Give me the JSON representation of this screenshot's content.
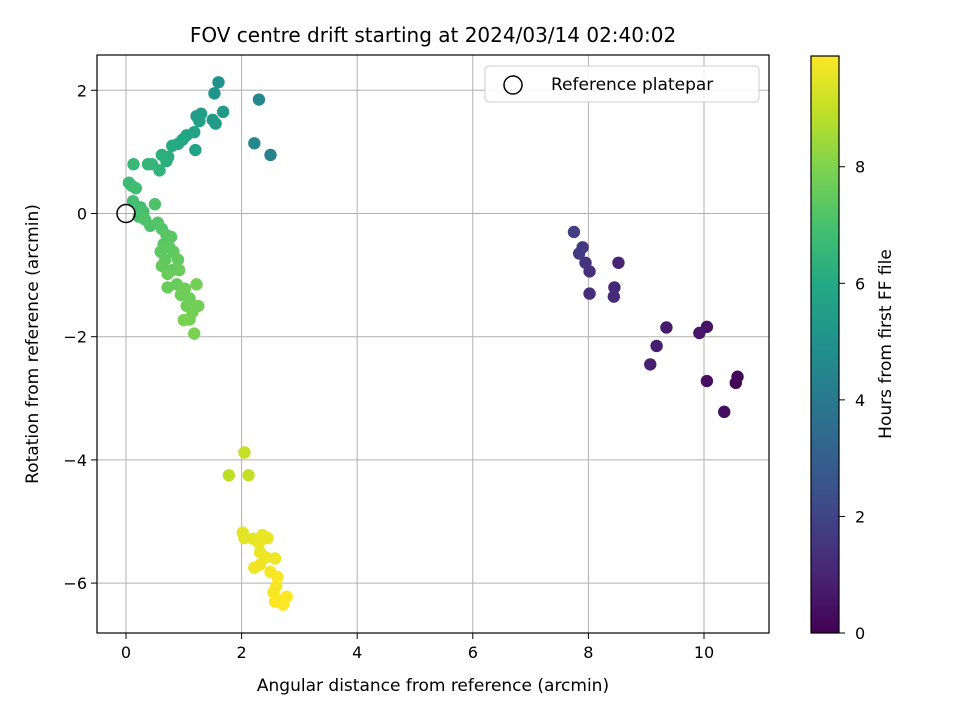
{
  "chart_data": {
    "type": "scatter",
    "title": "FOV centre drift starting at 2024/03/14 02:40:02",
    "xlabel": "Angular distance from reference (arcmin)",
    "ylabel": "Rotation from reference (arcmin)",
    "xlim": [
      -0.5,
      11.1
    ],
    "ylim": [
      -6.8,
      2.55
    ],
    "xticks": [
      0,
      2,
      4,
      6,
      8,
      10
    ],
    "yticks": [
      2,
      0,
      -2,
      -4,
      -6
    ],
    "grid": true,
    "legend": {
      "position": "top-right",
      "entries": [
        "Reference platepar"
      ]
    },
    "reference_point": {
      "x": 0,
      "y": 0,
      "marker": "open-circle"
    },
    "colorbar": {
      "label": "Hours from first FF file",
      "colormap": "viridis",
      "range": [
        0,
        9.9
      ],
      "ticks": [
        0,
        2,
        4,
        6,
        8
      ]
    },
    "series": [
      {
        "color_by": "hours",
        "points": [
          {
            "x": 10.55,
            "y": -2.75,
            "hours": 0.1
          },
          {
            "x": 10.58,
            "y": -2.65,
            "hours": 0.2
          },
          {
            "x": 10.35,
            "y": -3.22,
            "hours": 0.3
          },
          {
            "x": 10.05,
            "y": -2.72,
            "hours": 0.4
          },
          {
            "x": 10.05,
            "y": -1.84,
            "hours": 0.5
          },
          {
            "x": 9.92,
            "y": -1.94,
            "hours": 0.6
          },
          {
            "x": 9.35,
            "y": -1.85,
            "hours": 0.7
          },
          {
            "x": 9.18,
            "y": -2.15,
            "hours": 0.8
          },
          {
            "x": 9.07,
            "y": -2.45,
            "hours": 0.9
          },
          {
            "x": 8.52,
            "y": -0.8,
            "hours": 1.0
          },
          {
            "x": 8.45,
            "y": -1.2,
            "hours": 1.1
          },
          {
            "x": 8.44,
            "y": -1.35,
            "hours": 1.2
          },
          {
            "x": 8.02,
            "y": -1.3,
            "hours": 1.3
          },
          {
            "x": 8.02,
            "y": -0.94,
            "hours": 1.4
          },
          {
            "x": 7.95,
            "y": -0.8,
            "hours": 1.5
          },
          {
            "x": 7.9,
            "y": -0.55,
            "hours": 1.6
          },
          {
            "x": 7.84,
            "y": -0.65,
            "hours": 1.7
          },
          {
            "x": 7.75,
            "y": -0.3,
            "hours": 1.8
          },
          {
            "x": 2.5,
            "y": 0.95,
            "hours": 4.4
          },
          {
            "x": 2.3,
            "y": 1.85,
            "hours": 4.5
          },
          {
            "x": 2.22,
            "y": 1.14,
            "hours": 4.6
          },
          {
            "x": 1.6,
            "y": 2.13,
            "hours": 5.0
          },
          {
            "x": 1.53,
            "y": 1.95,
            "hours": 5.1
          },
          {
            "x": 1.68,
            "y": 1.65,
            "hours": 5.3
          },
          {
            "x": 1.55,
            "y": 1.46,
            "hours": 5.4
          },
          {
            "x": 1.5,
            "y": 1.52,
            "hours": 5.4
          },
          {
            "x": 1.3,
            "y": 1.62,
            "hours": 5.5
          },
          {
            "x": 1.22,
            "y": 1.58,
            "hours": 5.5
          },
          {
            "x": 1.27,
            "y": 1.5,
            "hours": 5.6
          },
          {
            "x": 1.18,
            "y": 1.32,
            "hours": 5.7
          },
          {
            "x": 1.2,
            "y": 1.03,
            "hours": 5.7
          },
          {
            "x": 1.05,
            "y": 1.27,
            "hours": 5.8
          },
          {
            "x": 0.98,
            "y": 1.2,
            "hours": 5.9
          },
          {
            "x": 0.9,
            "y": 1.13,
            "hours": 6.0
          },
          {
            "x": 0.8,
            "y": 1.1,
            "hours": 6.1
          },
          {
            "x": 0.73,
            "y": 0.92,
            "hours": 6.2
          },
          {
            "x": 0.7,
            "y": 0.85,
            "hours": 6.2
          },
          {
            "x": 0.62,
            "y": 0.95,
            "hours": 6.3
          },
          {
            "x": 0.58,
            "y": 0.7,
            "hours": 6.4
          },
          {
            "x": 0.45,
            "y": 0.8,
            "hours": 6.5
          },
          {
            "x": 0.38,
            "y": 0.8,
            "hours": 6.5
          },
          {
            "x": 0.13,
            "y": 0.8,
            "hours": 6.6
          },
          {
            "x": 0.05,
            "y": 0.5,
            "hours": 6.7
          },
          {
            "x": 0.1,
            "y": 0.45,
            "hours": 6.7
          },
          {
            "x": 0.17,
            "y": 0.41,
            "hours": 6.8
          },
          {
            "x": 0.12,
            "y": 0.2,
            "hours": 6.9
          },
          {
            "x": 0.25,
            "y": 0.1,
            "hours": 6.9
          },
          {
            "x": 0.3,
            "y": 0.03,
            "hours": 7.0
          },
          {
            "x": 0.22,
            "y": -0.05,
            "hours": 7.0
          },
          {
            "x": 0.33,
            "y": -0.1,
            "hours": 7.1
          },
          {
            "x": 0.42,
            "y": -0.2,
            "hours": 7.1
          },
          {
            "x": 0.5,
            "y": 0.15,
            "hours": 7.1
          },
          {
            "x": 0.55,
            "y": -0.15,
            "hours": 7.2
          },
          {
            "x": 0.62,
            "y": -0.25,
            "hours": 7.2
          },
          {
            "x": 0.7,
            "y": -0.35,
            "hours": 7.3
          },
          {
            "x": 0.78,
            "y": -0.38,
            "hours": 7.3
          },
          {
            "x": 0.65,
            "y": -0.5,
            "hours": 7.3
          },
          {
            "x": 0.6,
            "y": -0.62,
            "hours": 7.4
          },
          {
            "x": 0.75,
            "y": -0.55,
            "hours": 7.4
          },
          {
            "x": 0.82,
            "y": -0.62,
            "hours": 7.4
          },
          {
            "x": 0.9,
            "y": -0.75,
            "hours": 7.5
          },
          {
            "x": 0.68,
            "y": -0.75,
            "hours": 7.5
          },
          {
            "x": 0.62,
            "y": -0.85,
            "hours": 7.5
          },
          {
            "x": 0.8,
            "y": -0.92,
            "hours": 7.5
          },
          {
            "x": 0.72,
            "y": -0.98,
            "hours": 7.6
          },
          {
            "x": 0.92,
            "y": -0.92,
            "hours": 7.6
          },
          {
            "x": 0.88,
            "y": -1.15,
            "hours": 7.6
          },
          {
            "x": 0.72,
            "y": -1.2,
            "hours": 7.6
          },
          {
            "x": 1.02,
            "y": -1.22,
            "hours": 7.7
          },
          {
            "x": 0.95,
            "y": -1.32,
            "hours": 7.7
          },
          {
            "x": 1.1,
            "y": -1.38,
            "hours": 7.7
          },
          {
            "x": 1.05,
            "y": -1.5,
            "hours": 7.7
          },
          {
            "x": 1.22,
            "y": -1.15,
            "hours": 7.8
          },
          {
            "x": 1.25,
            "y": -1.5,
            "hours": 7.8
          },
          {
            "x": 1.15,
            "y": -1.6,
            "hours": 7.8
          },
          {
            "x": 1.1,
            "y": -1.72,
            "hours": 7.8
          },
          {
            "x": 1.0,
            "y": -1.73,
            "hours": 7.9
          },
          {
            "x": 1.18,
            "y": -1.95,
            "hours": 7.9
          },
          {
            "x": 1.78,
            "y": -4.25,
            "hours": 8.9
          },
          {
            "x": 2.05,
            "y": -3.88,
            "hours": 9.0
          },
          {
            "x": 2.12,
            "y": -4.25,
            "hours": 9.0
          },
          {
            "x": 2.02,
            "y": -5.18,
            "hours": 9.5
          },
          {
            "x": 2.05,
            "y": -5.27,
            "hours": 9.5
          },
          {
            "x": 2.2,
            "y": -5.28,
            "hours": 9.5
          },
          {
            "x": 2.3,
            "y": -5.35,
            "hours": 9.6
          },
          {
            "x": 2.36,
            "y": -5.22,
            "hours": 9.6
          },
          {
            "x": 2.45,
            "y": -5.27,
            "hours": 9.6
          },
          {
            "x": 2.32,
            "y": -5.5,
            "hours": 9.6
          },
          {
            "x": 2.42,
            "y": -5.58,
            "hours": 9.7
          },
          {
            "x": 2.32,
            "y": -5.7,
            "hours": 9.7
          },
          {
            "x": 2.22,
            "y": -5.75,
            "hours": 9.7
          },
          {
            "x": 2.58,
            "y": -5.6,
            "hours": 9.7
          },
          {
            "x": 2.5,
            "y": -5.82,
            "hours": 9.8
          },
          {
            "x": 2.62,
            "y": -5.9,
            "hours": 9.8
          },
          {
            "x": 2.6,
            "y": -6.05,
            "hours": 9.8
          },
          {
            "x": 2.55,
            "y": -6.15,
            "hours": 9.8
          },
          {
            "x": 2.65,
            "y": -6.28,
            "hours": 9.9
          },
          {
            "x": 2.58,
            "y": -6.3,
            "hours": 9.9
          },
          {
            "x": 2.72,
            "y": -6.35,
            "hours": 9.9
          },
          {
            "x": 2.78,
            "y": -6.22,
            "hours": 9.9
          }
        ]
      }
    ]
  }
}
